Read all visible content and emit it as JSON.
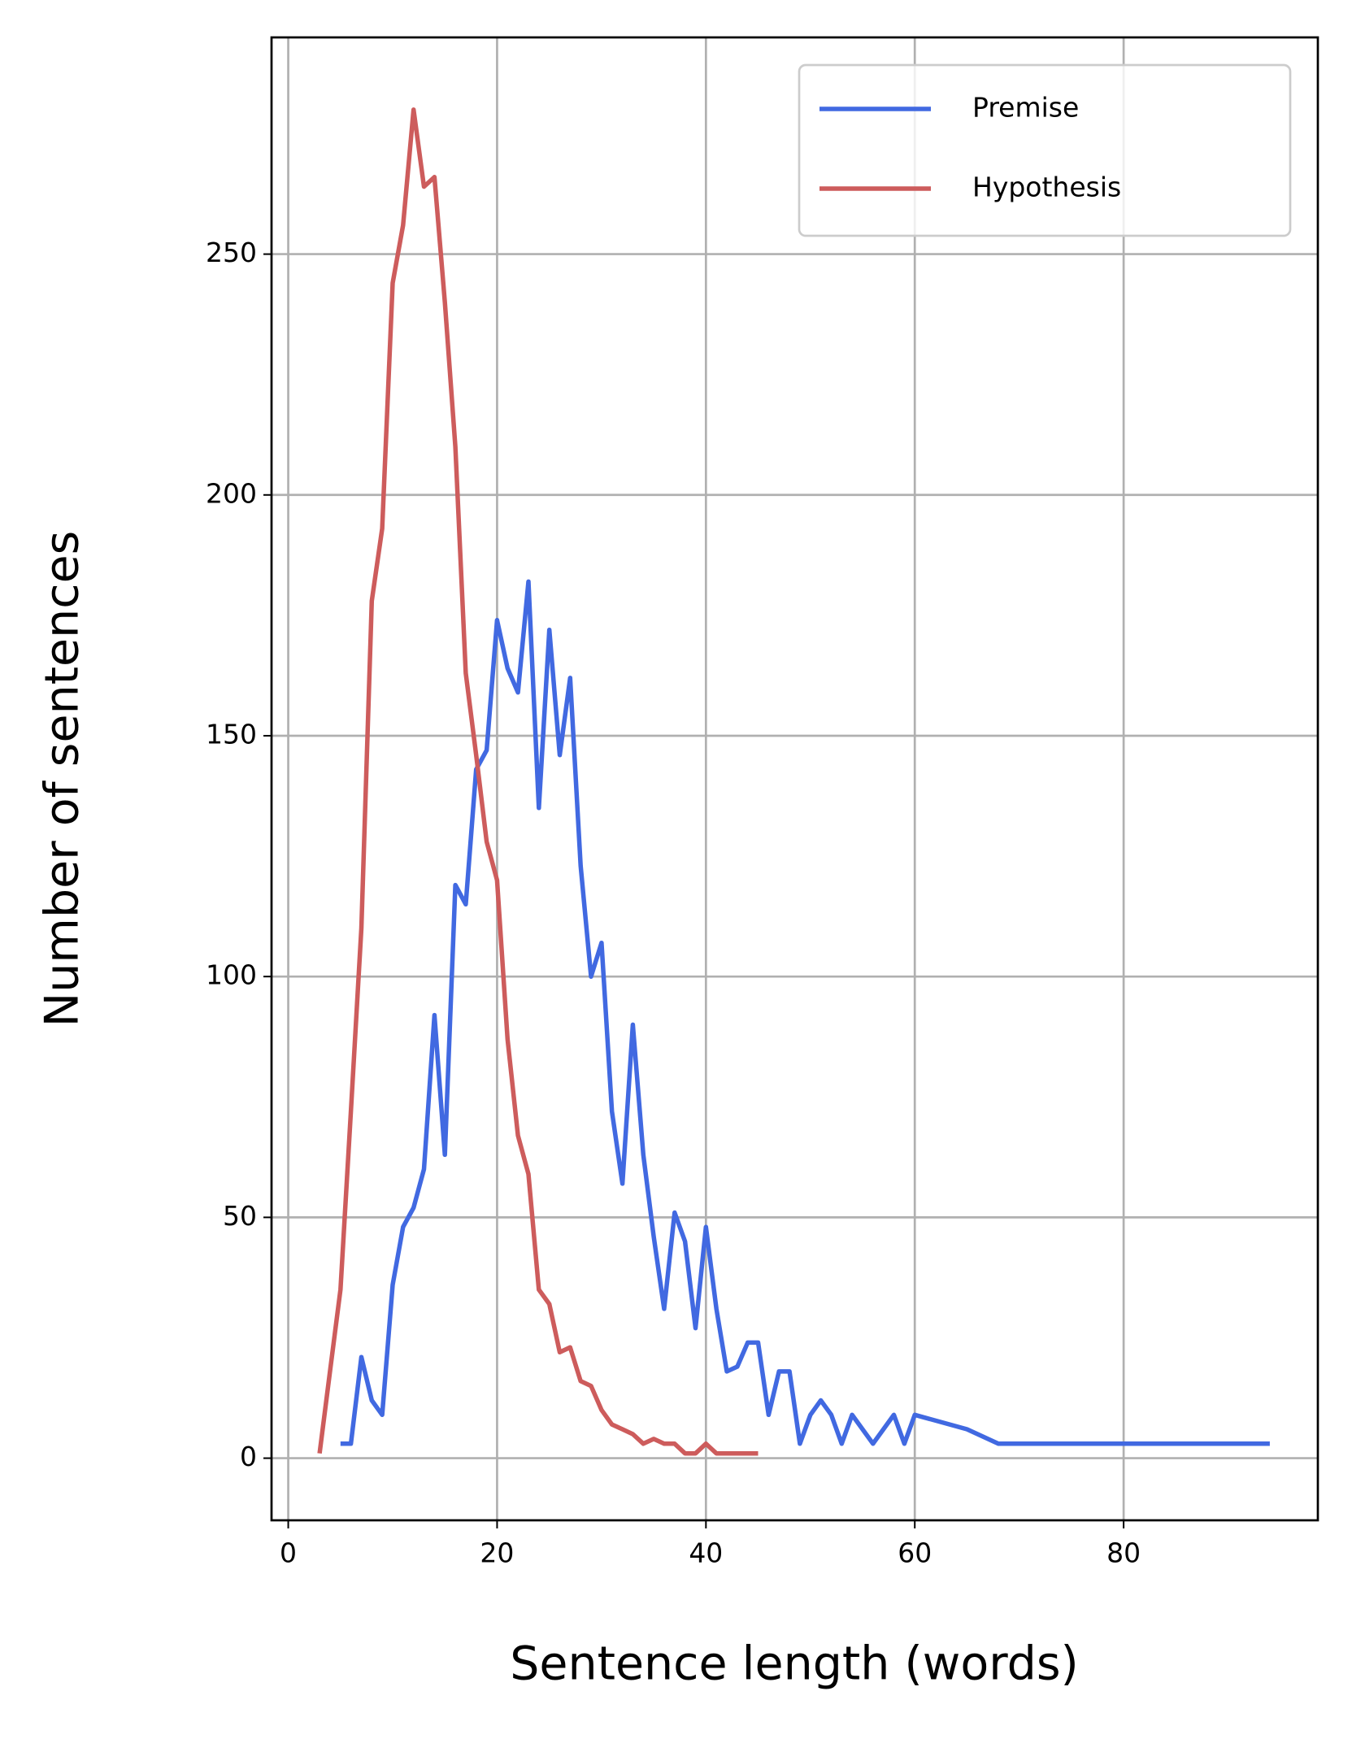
{
  "chart_data": {
    "type": "line",
    "x_label": "Sentence length (words)",
    "y_label": "Number of sentences",
    "xlim": [
      -1.6,
      98.6
    ],
    "ylim": [
      -12.9,
      295
    ],
    "xticks": [
      0,
      20,
      40,
      60,
      80
    ],
    "yticks": [
      0,
      50,
      100,
      150,
      200,
      250
    ],
    "grid": true,
    "legend": "upper right",
    "series": [
      {
        "name": "Premise",
        "color": "#4169e1",
        "x": [
          5,
          6,
          7,
          8,
          9,
          10,
          11,
          12,
          13,
          14,
          15,
          16,
          17,
          18,
          19,
          20,
          21,
          22,
          23,
          24,
          25,
          26,
          27,
          28,
          29,
          30,
          31,
          32,
          33,
          34,
          35,
          36,
          37,
          38,
          39,
          40,
          41,
          42,
          43,
          44,
          45,
          46,
          47,
          48,
          49,
          50,
          51,
          52,
          53,
          54,
          56,
          58,
          59,
          60,
          65,
          68,
          94
        ],
        "values": [
          3,
          3,
          21,
          12,
          9,
          36,
          48,
          52,
          60,
          92,
          63,
          119,
          115,
          143,
          147,
          174,
          164,
          159,
          182,
          135,
          172,
          146,
          162,
          123,
          100,
          107,
          72,
          57,
          90,
          63,
          46,
          31,
          51,
          45,
          27,
          48,
          31,
          18,
          19,
          24,
          24,
          9,
          18,
          18,
          3,
          9,
          12,
          9,
          3,
          9,
          3,
          9,
          3,
          9,
          6,
          3,
          3
        ]
      },
      {
        "name": "Hypothesis",
        "color": "#cd5c5c",
        "x": [
          3,
          4,
          5,
          6,
          7,
          8,
          9,
          10,
          11,
          12,
          13,
          14,
          15,
          16,
          17,
          18,
          19,
          20,
          21,
          22,
          23,
          24,
          25,
          26,
          27,
          28,
          29,
          30,
          31,
          32,
          33,
          34,
          35,
          36,
          37,
          38,
          39,
          40,
          41,
          42,
          43,
          44,
          45
        ],
        "values": [
          1,
          18,
          35,
          72,
          110,
          178,
          193,
          244,
          256,
          280,
          264,
          266,
          240,
          210,
          163,
          146,
          128,
          120,
          87,
          67,
          59,
          35,
          32,
          22,
          23,
          16,
          15,
          10,
          7,
          6,
          5,
          3,
          4,
          3,
          3,
          1,
          1,
          3,
          1,
          1,
          1,
          1,
          1
        ]
      }
    ]
  }
}
